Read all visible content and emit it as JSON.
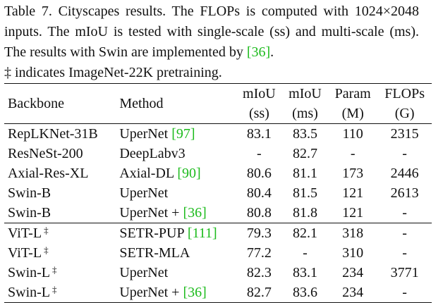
{
  "caption": {
    "label": "Table 7.",
    "text_before_cite": "Cityscapes results.  The FLOPs is computed with 1024×2048 inputs. The mIoU is tested with single-scale (ss) and multi-scale (ms). The results with Swin are implemented by ",
    "cite": "[36]",
    "text_after_cite": ".",
    "footnote": "‡ indicates ImageNet-22K pretraining."
  },
  "table": {
    "headers": {
      "backbone": "Backbone",
      "method": "Method",
      "miou_ss_top": "mIoU",
      "miou_ss_bottom": "(ss)",
      "miou_ms_top": "mIoU",
      "miou_ms_bottom": "(ms)",
      "param_top": "Param",
      "param_bottom": "(M)",
      "flops_top": "FLOPs",
      "flops_bottom": "(G)"
    },
    "rows": [
      {
        "backbone": "RepLKNet-31B",
        "dagger": "",
        "method": "UperNet ",
        "cite": "[97]",
        "ss": "83.1",
        "ms": "83.5",
        "param": "110",
        "flops": "2315"
      },
      {
        "backbone": "ResNeSt-200",
        "dagger": "",
        "method": "DeepLabv3",
        "cite": "",
        "ss": "-",
        "ms": "82.7",
        "param": "-",
        "flops": "-"
      },
      {
        "backbone": "Axial-Res-XL",
        "dagger": "",
        "method": "Axial-DL ",
        "cite": "[90]",
        "ss": "80.6",
        "ms": "81.1",
        "param": "173",
        "flops": "2446"
      },
      {
        "backbone": "Swin-B",
        "dagger": "",
        "method": "UperNet",
        "cite": "",
        "ss": "80.4",
        "ms": "81.5",
        "param": "121",
        "flops": "2613"
      },
      {
        "backbone": "Swin-B",
        "dagger": "",
        "method": "UperNet + ",
        "cite": "[36]",
        "ss": "80.8",
        "ms": "81.8",
        "param": "121",
        "flops": "-"
      },
      {
        "backbone": "ViT-L",
        "dagger": "‡",
        "method": "SETR-PUP ",
        "cite": "[111]",
        "ss": "79.3",
        "ms": "82.1",
        "param": "318",
        "flops": "-"
      },
      {
        "backbone": "ViT-L",
        "dagger": "‡",
        "method": "SETR-MLA",
        "cite": "",
        "ss": "77.2",
        "ms": "-",
        "param": "310",
        "flops": "-"
      },
      {
        "backbone": "Swin-L",
        "dagger": "‡",
        "method": "UperNet",
        "cite": "",
        "ss": "82.3",
        "ms": "83.1",
        "param": "234",
        "flops": "3771"
      },
      {
        "backbone": "Swin-L",
        "dagger": "‡",
        "method": "UperNet + ",
        "cite": "[36]",
        "ss": "82.7",
        "ms": "83.6",
        "param": "234",
        "flops": "-"
      }
    ]
  },
  "colors": {
    "text": "#111111",
    "citation": "#1dbb1d"
  }
}
